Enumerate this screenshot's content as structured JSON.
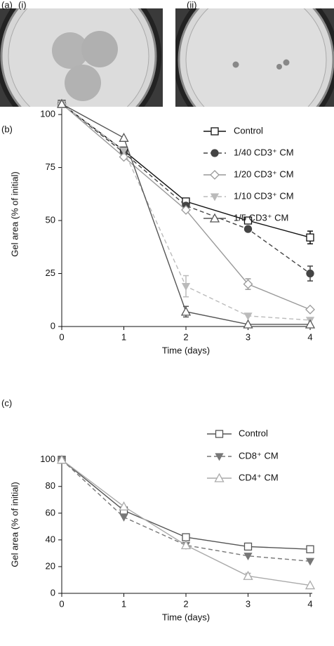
{
  "figure": {
    "panel_a": "(a)",
    "photo_1": "(i)",
    "photo_2": "(ii)"
  },
  "chart_data": [
    {
      "type": "line",
      "panel": "(b)",
      "xlabel": "Time (days)",
      "ylabel": "Gel area (% of initial)",
      "x": [
        0,
        1,
        2,
        3,
        4
      ],
      "xlim": [
        0,
        4
      ],
      "xticks": [
        0,
        1,
        2,
        3,
        4
      ],
      "ylim": [
        0,
        106
      ],
      "yticks": [
        0,
        25,
        50,
        75,
        100
      ],
      "series": [
        {
          "name": "Control",
          "color": "#111111",
          "dashed": false,
          "marker": "square",
          "filled": false,
          "values": [
            105,
            83,
            59,
            50,
            42
          ],
          "errors": [
            0,
            0,
            0,
            0,
            3
          ]
        },
        {
          "name": "1/40 CD3⁺ CM",
          "color": "#444444",
          "dashed": true,
          "marker": "circle",
          "filled": true,
          "values": [
            105,
            82,
            57,
            46,
            25
          ],
          "errors": [
            0,
            0,
            0,
            0,
            3.5
          ]
        },
        {
          "name": "1/20 CD3⁺ CM",
          "color": "#999999",
          "dashed": false,
          "marker": "diamond",
          "filled": false,
          "values": [
            105,
            80,
            55,
            20,
            8
          ],
          "errors": [
            0,
            0,
            0,
            2.5,
            0
          ]
        },
        {
          "name": "1/10 CD3⁺ CM",
          "color": "#bbbbbb",
          "dashed": true,
          "marker": "triangle-down",
          "filled": true,
          "values": [
            105,
            83,
            19,
            5,
            3
          ],
          "errors": [
            0,
            0,
            5,
            0,
            0
          ]
        },
        {
          "name": "1/5 CD3⁺ CM",
          "color": "#555555",
          "dashed": false,
          "marker": "triangle-up",
          "filled": false,
          "values": [
            105,
            89,
            7,
            1,
            1
          ],
          "errors": [
            0,
            0,
            2.5,
            0,
            0
          ]
        }
      ]
    },
    {
      "type": "line",
      "panel": "(c)",
      "xlabel": "Time (days)",
      "ylabel": "Gel area (% of initial)",
      "x": [
        0,
        1,
        2,
        3,
        4
      ],
      "xlim": [
        0,
        4
      ],
      "xticks": [
        0,
        1,
        2,
        3,
        4
      ],
      "ylim": [
        0,
        103
      ],
      "yticks": [
        0,
        20,
        40,
        60,
        80,
        100
      ],
      "series": [
        {
          "name": "Control",
          "color": "#555555",
          "dashed": false,
          "marker": "square",
          "filled": false,
          "values": [
            100,
            62,
            42,
            35,
            33
          ],
          "errors": [
            0,
            0,
            0,
            0,
            0
          ]
        },
        {
          "name": "CD8⁺ CM",
          "color": "#777777",
          "dashed": true,
          "marker": "triangle-down",
          "filled": true,
          "values": [
            100,
            57,
            36,
            28,
            24
          ],
          "errors": [
            0,
            0,
            0,
            0,
            0
          ]
        },
        {
          "name": "CD4⁺ CM",
          "color": "#aaaaaa",
          "dashed": false,
          "marker": "triangle-up",
          "filled": false,
          "values": [
            100,
            65,
            36,
            13,
            6
          ],
          "errors": [
            0,
            0,
            0,
            2,
            0
          ]
        }
      ]
    }
  ]
}
